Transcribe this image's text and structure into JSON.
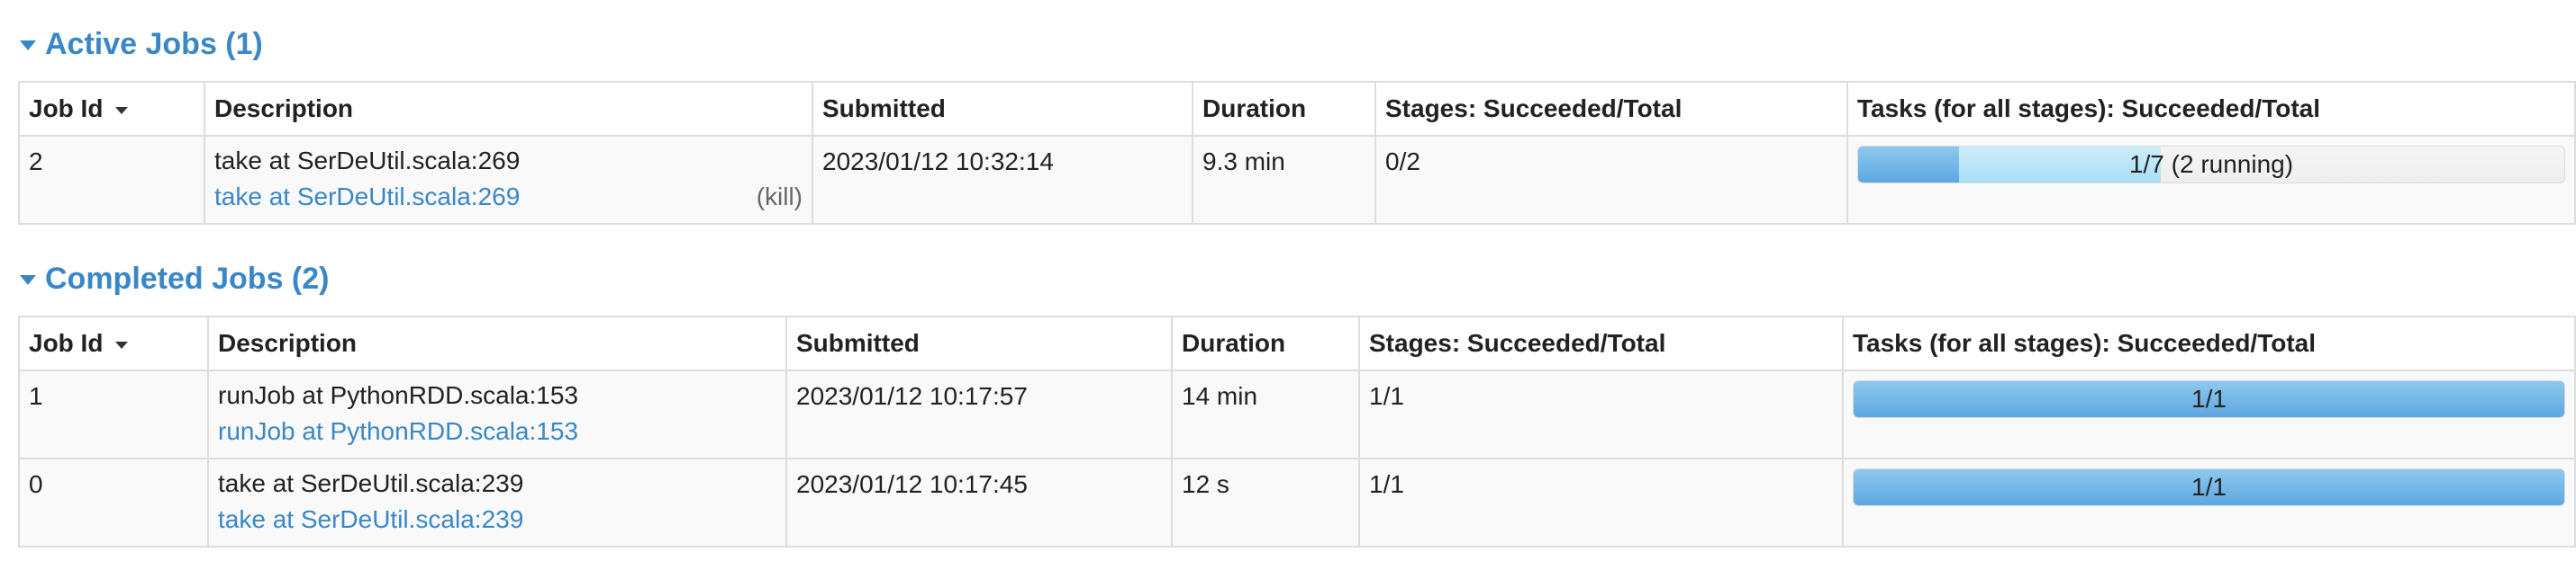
{
  "active_jobs": {
    "title": "Active Jobs (1)",
    "columns": [
      "Job Id",
      "Description",
      "Submitted",
      "Duration",
      "Stages: Succeeded/Total",
      "Tasks (for all stages): Succeeded/Total"
    ],
    "rows": [
      {
        "job_id": "2",
        "description": "take at SerDeUtil.scala:269",
        "description_link": "take at SerDeUtil.scala:269",
        "kill": "(kill)",
        "submitted": "2023/01/12 10:32:14",
        "duration": "9.3 min",
        "stages": "0/2",
        "tasks_label": "1/7 (2 running)",
        "tasks_succeeded": 1,
        "tasks_running": 2,
        "tasks_total": 7
      }
    ]
  },
  "completed_jobs": {
    "title": "Completed Jobs (2)",
    "columns": [
      "Job Id",
      "Description",
      "Submitted",
      "Duration",
      "Stages: Succeeded/Total",
      "Tasks (for all stages): Succeeded/Total"
    ],
    "rows": [
      {
        "job_id": "1",
        "description": "runJob at PythonRDD.scala:153",
        "description_link": "runJob at PythonRDD.scala:153",
        "submitted": "2023/01/12 10:17:57",
        "duration": "14 min",
        "stages": "1/1",
        "tasks_label": "1/1",
        "tasks_succeeded": 1,
        "tasks_running": 0,
        "tasks_total": 1
      },
      {
        "job_id": "0",
        "description": "take at SerDeUtil.scala:239",
        "description_link": "take at SerDeUtil.scala:239",
        "submitted": "2023/01/12 10:17:45",
        "duration": "12 s",
        "stages": "1/1",
        "tasks_label": "1/1",
        "tasks_succeeded": 1,
        "tasks_running": 0,
        "tasks_total": 1
      }
    ]
  },
  "colors": {
    "accent": "#3a87c8",
    "progress_completed": "#5ea8e0",
    "progress_running": "#a9def5"
  }
}
